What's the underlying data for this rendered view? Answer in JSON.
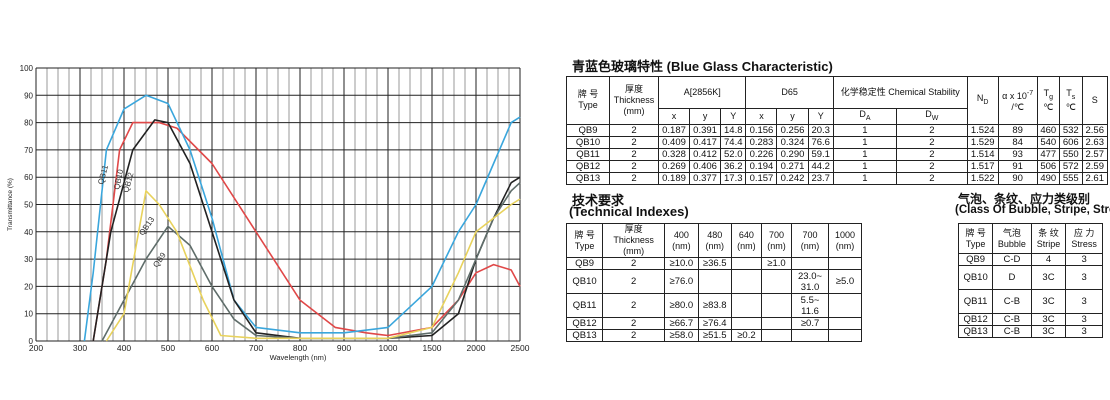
{
  "chart_data": {
    "type": "line",
    "xlabel": "Wavelength (nm)",
    "ylabel": "Transmittance (%)",
    "x_ticks": [
      "200",
      "300",
      "400",
      "500",
      "600",
      "700",
      "800",
      "900",
      "1000",
      "1500",
      "2000",
      "2500"
    ],
    "y_ticks": [
      "0",
      "10",
      "20",
      "30",
      "40",
      "50",
      "60",
      "70",
      "80",
      "90",
      "100"
    ],
    "ylim": [
      0,
      100
    ],
    "grid": true,
    "series": [
      {
        "name": "QB10",
        "color": "#e04848",
        "inline_label": "QB10",
        "points": [
          [
            330,
            0
          ],
          [
            360,
            30
          ],
          [
            390,
            70
          ],
          [
            420,
            80
          ],
          [
            480,
            80
          ],
          [
            520,
            78
          ],
          [
            600,
            65
          ],
          [
            700,
            40
          ],
          [
            800,
            15
          ],
          [
            880,
            5
          ],
          [
            950,
            3
          ],
          [
            1000,
            2
          ],
          [
            1500,
            5
          ],
          [
            1800,
            15
          ],
          [
            2000,
            25
          ],
          [
            2200,
            28
          ],
          [
            2400,
            26
          ],
          [
            2500,
            20
          ]
        ]
      },
      {
        "name": "QB9",
        "color": "#3aa6dc",
        "inline_label": "QB9",
        "points": [
          [
            310,
            0
          ],
          [
            330,
            25
          ],
          [
            360,
            70
          ],
          [
            400,
            85
          ],
          [
            450,
            90
          ],
          [
            500,
            87
          ],
          [
            550,
            70
          ],
          [
            600,
            45
          ],
          [
            650,
            15
          ],
          [
            700,
            5
          ],
          [
            800,
            3
          ],
          [
            900,
            3
          ],
          [
            1000,
            5
          ],
          [
            1500,
            20
          ],
          [
            1800,
            40
          ],
          [
            2000,
            50
          ],
          [
            2200,
            65
          ],
          [
            2400,
            80
          ],
          [
            2500,
            82
          ]
        ]
      },
      {
        "name": "QB11",
        "color": "#222222",
        "inline_label": "QB11",
        "points": [
          [
            330,
            0
          ],
          [
            370,
            40
          ],
          [
            420,
            70
          ],
          [
            470,
            81
          ],
          [
            500,
            80
          ],
          [
            550,
            65
          ],
          [
            600,
            40
          ],
          [
            650,
            15
          ],
          [
            700,
            3
          ],
          [
            800,
            1
          ],
          [
            1000,
            1
          ],
          [
            1500,
            2
          ],
          [
            1800,
            10
          ],
          [
            2000,
            30
          ],
          [
            2200,
            45
          ],
          [
            2400,
            58
          ],
          [
            2500,
            60
          ]
        ]
      },
      {
        "name": "QB12",
        "color": "#5f6d6a",
        "inline_label": "QB12",
        "points": [
          [
            350,
            0
          ],
          [
            400,
            15
          ],
          [
            450,
            30
          ],
          [
            500,
            42
          ],
          [
            550,
            35
          ],
          [
            600,
            20
          ],
          [
            650,
            8
          ],
          [
            700,
            2
          ],
          [
            800,
            1
          ],
          [
            1000,
            1
          ],
          [
            1500,
            3
          ],
          [
            1800,
            15
          ],
          [
            2000,
            30
          ],
          [
            2200,
            45
          ],
          [
            2400,
            55
          ],
          [
            2500,
            58
          ]
        ]
      },
      {
        "name": "QB13",
        "color": "#e8d25c",
        "inline_label": "QB13",
        "points": [
          [
            360,
            0
          ],
          [
            400,
            10
          ],
          [
            450,
            55
          ],
          [
            480,
            50
          ],
          [
            520,
            40
          ],
          [
            580,
            15
          ],
          [
            620,
            2
          ],
          [
            700,
            1
          ],
          [
            1000,
            1
          ],
          [
            1500,
            5
          ],
          [
            1800,
            25
          ],
          [
            2000,
            40
          ],
          [
            2200,
            45
          ],
          [
            2400,
            50
          ],
          [
            2500,
            52
          ]
        ]
      }
    ]
  },
  "right": {
    "blue_title": "青蓝色玻璃特性 (Blue Glass Characteristic)",
    "table1": {
      "headers": {
        "grade": "牌 号 Type",
        "thickness": "厚度 Thickness (mm)",
        "a2856": "A[2856K]",
        "d65": "D65",
        "chem": "化学稳定性 Chemical Stability",
        "nd": "N",
        "nd_sub": "D",
        "alpha": "α x 10",
        "alpha_sup": "-7",
        "alpha_unit": "/℃",
        "tg": "T",
        "tg_sub": "g",
        "tg_unit": "℃",
        "ts": "T",
        "ts_sub": "s",
        "ts_unit": "℃",
        "s": "S",
        "x": "x",
        "y": "y",
        "Y": "Y",
        "da": "D",
        "da_sub": "A",
        "dw": "D",
        "dw_sub": "W"
      },
      "rows": [
        [
          "QB9",
          "2",
          "0.187",
          "0.391",
          "14.8",
          "0.156",
          "0.256",
          "20.3",
          "1",
          "2",
          "1.524",
          "89",
          "460",
          "532",
          "2.56"
        ],
        [
          "QB10",
          "2",
          "0.409",
          "0.417",
          "74.4",
          "0.283",
          "0.324",
          "76.6",
          "1",
          "2",
          "1.529",
          "84",
          "540",
          "606",
          "2.63"
        ],
        [
          "QB11",
          "2",
          "0.328",
          "0.412",
          "52.0",
          "0.226",
          "0.290",
          "59.1",
          "1",
          "2",
          "1.514",
          "93",
          "477",
          "550",
          "2.57"
        ],
        [
          "QB12",
          "2",
          "0.269",
          "0.406",
          "36.2",
          "0.194",
          "0.271",
          "44.2",
          "1",
          "2",
          "1.517",
          "91",
          "506",
          "572",
          "2.59"
        ],
        [
          "QB13",
          "2",
          "0.189",
          "0.377",
          "17.3",
          "0.157",
          "0.242",
          "23.7",
          "1",
          "2",
          "1.522",
          "90",
          "490",
          "555",
          "2.61"
        ]
      ]
    },
    "tech_title_cn": "技术要求",
    "tech_title_en": "(Technical Indexes)",
    "bubble_title_cn": "气泡、条纹、应力类级别",
    "bubble_title_en": "(Class Of Bubble, Stripe, Stress)",
    "table2": {
      "headers": [
        "牌 号 Type",
        "厚度 Thickness (mm)",
        "400 (nm)",
        "480 (nm)",
        "640 (nm)",
        "700 (nm)",
        "700 (nm)",
        "1000 (nm)"
      ],
      "rows": [
        [
          "QB9",
          "2",
          "≥10.0",
          "≥36.5",
          "",
          "≥1.0",
          "",
          ""
        ],
        [
          "QB10",
          "2",
          "≥76.0",
          "",
          "",
          "",
          "23.0~ 31.0",
          "≥5.0"
        ],
        [
          "QB11",
          "2",
          "≥80.0",
          "≥83.8",
          "",
          "",
          "5.5~ 11.6",
          ""
        ],
        [
          "QB12",
          "2",
          "≥66.7",
          "≥76.4",
          "",
          "",
          "≥0.7",
          ""
        ],
        [
          "QB13",
          "2",
          "≥58.0",
          "≥51.5",
          "≥0.2",
          "",
          "",
          ""
        ]
      ]
    },
    "table3": {
      "headers": [
        "牌 号 Type",
        "气泡 Bubble",
        "条 纹 Stripe",
        "应 力 Stress"
      ],
      "rows": [
        [
          "QB9",
          "C-D",
          "4",
          "3"
        ],
        [
          "QB10",
          "D",
          "3C",
          "3"
        ],
        [
          "QB11",
          "C-B",
          "3C",
          "3"
        ],
        [
          "QB12",
          "C-B",
          "3C",
          "3"
        ],
        [
          "QB13",
          "C-B",
          "3C",
          "3"
        ]
      ]
    }
  }
}
